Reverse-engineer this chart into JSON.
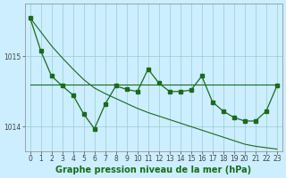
{
  "hours": [
    0,
    1,
    2,
    3,
    4,
    5,
    6,
    7,
    8,
    9,
    10,
    11,
    12,
    13,
    14,
    15,
    16,
    17,
    18,
    19,
    20,
    21,
    22,
    23
  ],
  "zigzag_line": [
    1015.55,
    1015.08,
    1014.72,
    1014.58,
    1014.45,
    1014.18,
    1013.97,
    1014.32,
    1014.58,
    1014.53,
    1014.5,
    1014.82,
    1014.62,
    1014.5,
    1014.5,
    1014.52,
    1014.72,
    1014.35,
    1014.22,
    1014.13,
    1014.08,
    1014.08,
    1014.22,
    1014.58
  ],
  "diagonal_trend": [
    1015.55,
    1015.35,
    1015.15,
    1014.98,
    1014.82,
    1014.67,
    1014.55,
    1014.47,
    1014.4,
    1014.33,
    1014.26,
    1014.2,
    1014.15,
    1014.1,
    1014.05,
    1014.0,
    1013.95,
    1013.9,
    1013.85,
    1013.8,
    1013.75,
    1013.72,
    1013.7,
    1013.68
  ],
  "horiz_trend": [
    1014.6,
    1014.6,
    1014.6,
    1014.6,
    1014.6,
    1014.6,
    1014.6,
    1014.6,
    1014.6,
    1014.6,
    1014.6,
    1014.6,
    1014.6,
    1014.6,
    1014.6,
    1014.6,
    1014.6,
    1014.6,
    1014.6,
    1014.6,
    1014.6,
    1014.6,
    1014.6,
    1014.6
  ],
  "bg_color": "#cceeff",
  "grid_color": "#99cccc",
  "line_color": "#1a6b1a",
  "ylim": [
    1013.65,
    1015.75
  ],
  "yticks": [
    1014,
    1015
  ],
  "xticks": [
    0,
    1,
    2,
    3,
    4,
    5,
    6,
    7,
    8,
    9,
    10,
    11,
    12,
    13,
    14,
    15,
    16,
    17,
    18,
    19,
    20,
    21,
    22,
    23
  ],
  "xlabel": "Graphe pression niveau de la mer (hPa)",
  "xlabel_fontsize": 7,
  "tick_fontsize": 5.5,
  "marker_size": 2.5,
  "lw_main": 0.9,
  "lw_trend": 0.8
}
